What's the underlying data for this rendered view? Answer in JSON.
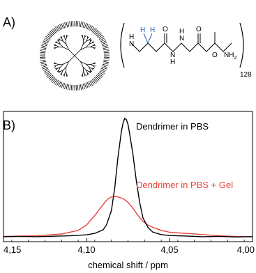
{
  "panel_a": {
    "label": "A)",
    "chem": {
      "H1": "H",
      "H2": "H",
      "N1": "N",
      "H_N1": "H",
      "O1": "O",
      "N2": "N",
      "H_N2": "H",
      "O2": "O",
      "N3": "N",
      "H_N3": "H",
      "O3": "O",
      "nh2": "NH",
      "nh2_sub": "2",
      "repeat": "128"
    }
  },
  "panel_b": {
    "label": "B)"
  },
  "chart_data": {
    "type": "line",
    "xlabel": "chemical shift / ppm",
    "ylabel": "",
    "xlim": [
      4.15,
      4.0
    ],
    "x_reversed": true,
    "x_ticks": [
      "4,15",
      "4,10",
      "4,05",
      "4,00"
    ],
    "x_tick_values": [
      4.15,
      4.1,
      4.05,
      4.0
    ],
    "grid": false,
    "legend": "in-plot labels",
    "series": [
      {
        "name": "Dendrimer in PBS",
        "color": "#000000",
        "x": [
          4.15,
          4.14,
          4.13,
          4.12,
          4.11,
          4.1,
          4.095,
          4.09,
          4.088,
          4.085,
          4.083,
          4.081,
          4.079,
          4.078,
          4.077,
          4.076,
          4.075,
          4.074,
          4.072,
          4.07,
          4.068,
          4.066,
          4.063,
          4.06,
          4.055,
          4.05,
          4.04,
          4.03,
          4.02,
          4.01,
          4.0
        ],
        "y": [
          0.012,
          0.015,
          0.012,
          0.016,
          0.02,
          0.028,
          0.04,
          0.07,
          0.11,
          0.23,
          0.42,
          0.68,
          0.89,
          0.96,
          1.0,
          0.99,
          0.95,
          0.87,
          0.7,
          0.48,
          0.3,
          0.17,
          0.09,
          0.05,
          0.03,
          0.022,
          0.018,
          0.012,
          0.015,
          0.01,
          0.013
        ]
      },
      {
        "name": "Dendrimer in PBS + Gel",
        "color": "#e8423a",
        "x": [
          4.15,
          4.13,
          4.115,
          4.105,
          4.1,
          4.095,
          4.09,
          4.087,
          4.084,
          4.081,
          4.078,
          4.075,
          4.072,
          4.069,
          4.066,
          4.063,
          4.06,
          4.055,
          4.05,
          4.045,
          4.04,
          4.03,
          4.02,
          4.01,
          4.0
        ],
        "y": [
          0.015,
          0.02,
          0.035,
          0.065,
          0.11,
          0.19,
          0.28,
          0.33,
          0.35,
          0.345,
          0.33,
          0.3,
          0.25,
          0.19,
          0.14,
          0.11,
          0.09,
          0.065,
          0.05,
          0.045,
          0.04,
          0.03,
          0.02,
          0.014,
          0.012
        ]
      }
    ]
  }
}
